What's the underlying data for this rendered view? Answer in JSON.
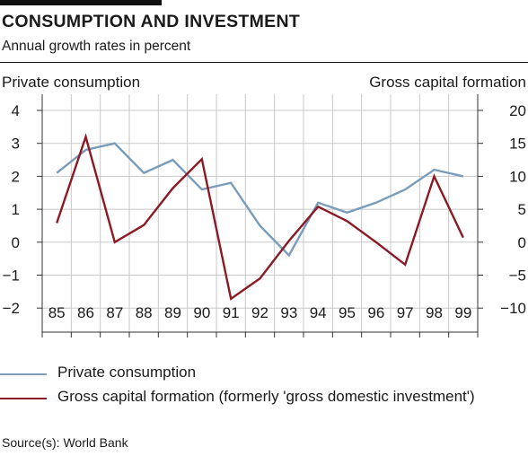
{
  "header": {
    "title": "CONSUMPTION AND INVESTMENT",
    "subtitle": "Annual growth rates in percent"
  },
  "legend": {
    "items": [
      {
        "label": "Private consumption",
        "color": "#7a9cbb"
      },
      {
        "label": "Gross capital formation (formerly 'gross domestic investment')",
        "color": "#8a1a24"
      }
    ]
  },
  "footer": {
    "source": "Source(s): World Bank"
  },
  "chart_data": {
    "type": "line",
    "x": [
      "85",
      "86",
      "87",
      "88",
      "89",
      "90",
      "91",
      "92",
      "93",
      "94",
      "95",
      "96",
      "97",
      "98",
      "99"
    ],
    "ylabel": "Private consumption",
    "y2label": "Gross capital formation",
    "ylim": [
      -2.5,
      4.5
    ],
    "y2lim": [
      -12.5,
      22.5
    ],
    "yticks": [
      "4",
      "3",
      "2",
      "1",
      "0",
      "−1",
      "−2"
    ],
    "y2ticks": [
      "20",
      "15",
      "10",
      "5",
      "0",
      "−5",
      "−10"
    ],
    "grid": true,
    "series": [
      {
        "name": "Private consumption",
        "axis": "left",
        "color": "#7a9cbb",
        "values": [
          2.1,
          2.8,
          3.0,
          2.1,
          2.5,
          1.6,
          1.8,
          0.5,
          -0.4,
          1.2,
          0.9,
          1.2,
          1.6,
          2.2,
          2.0
        ]
      },
      {
        "name": "Gross capital formation (formerly 'gross domestic investment')",
        "axis": "right",
        "color": "#8a1a24",
        "values": [
          2.9,
          16.0,
          0.0,
          2.6,
          8.2,
          12.6,
          -8.6,
          -5.5,
          0.2,
          5.4,
          3.2,
          0.0,
          -3.4,
          10.0,
          0.7
        ]
      }
    ]
  }
}
